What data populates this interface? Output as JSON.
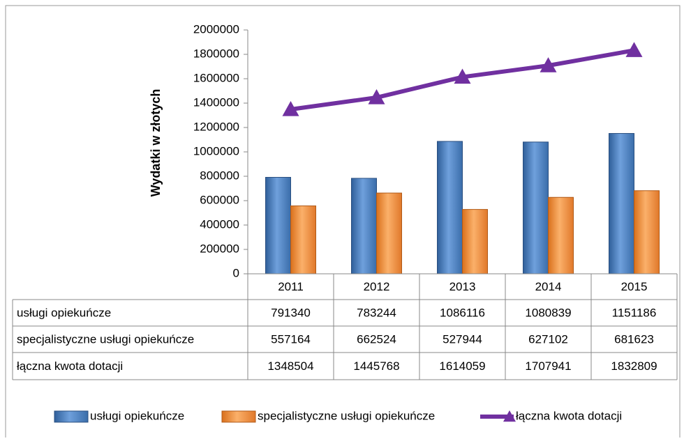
{
  "chart_data": {
    "type": "bar",
    "y_label": "Wydatki w złotych",
    "categories": [
      "2011",
      "2012",
      "2013",
      "2014",
      "2015"
    ],
    "series": [
      {
        "name": "usługi opiekuńcze",
        "color": "#4f81bd",
        "type": "bar",
        "values": [
          791340,
          783244,
          1086116,
          1080839,
          1151186
        ]
      },
      {
        "name": "specjalistyczne usługi opiekuńcze",
        "color": "#f79646",
        "type": "bar",
        "values": [
          557164,
          662524,
          527944,
          627102,
          681623
        ]
      },
      {
        "name": "łączna kwota dotacji",
        "color": "#7030a0",
        "type": "line",
        "values": [
          1348504,
          1445768,
          1614059,
          1707941,
          1832809
        ]
      }
    ],
    "ylim": [
      0,
      2000000
    ],
    "yticks": [
      0,
      200000,
      400000,
      600000,
      800000,
      1000000,
      1200000,
      1400000,
      1600000,
      1800000,
      2000000
    ],
    "grid": false,
    "legend": "bottom",
    "data_table": true
  }
}
